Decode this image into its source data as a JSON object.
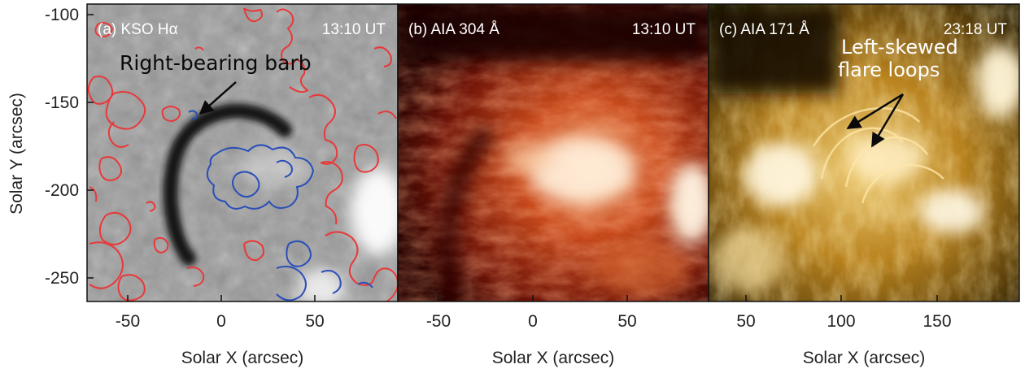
{
  "figure": {
    "y_axis_title": "Solar Y (arcsec)",
    "y_ticks": [
      "-100",
      "-150",
      "-200",
      "-250"
    ],
    "panels": [
      {
        "id": "a",
        "label": "(a) KSO Hα",
        "time": "13:10 UT",
        "x_axis_title": "Solar X (arcsec)",
        "x_ticks": [
          "-50",
          "0",
          "50"
        ],
        "annotation": "Right-bearing barb",
        "colors": {
          "bg": "#9a9a9a",
          "filament": "#151515",
          "positive_contour": "#e8393a",
          "negative_contour": "#2a4fb8"
        }
      },
      {
        "id": "b",
        "label": "(b) AIA 304 Å",
        "time": "13:10 UT",
        "x_axis_title": "Solar X (arcsec)",
        "x_ticks": [
          "-50",
          "0",
          "50"
        ],
        "colors": {
          "bg": "#3a0604",
          "mid": "#8a1e0c",
          "bright": "#ffd9b0"
        }
      },
      {
        "id": "c",
        "label": "(c) AIA 171 Å",
        "time": "23:18 UT",
        "x_axis_title": "Solar X (arcsec)",
        "x_ticks": [
          "50",
          "100",
          "150"
        ],
        "annotation_line1": "Left-skewed",
        "annotation_line2": "flare loops",
        "colors": {
          "bg": "#3a2a06",
          "mid": "#a8781a",
          "bright": "#fff3c8"
        }
      }
    ]
  }
}
